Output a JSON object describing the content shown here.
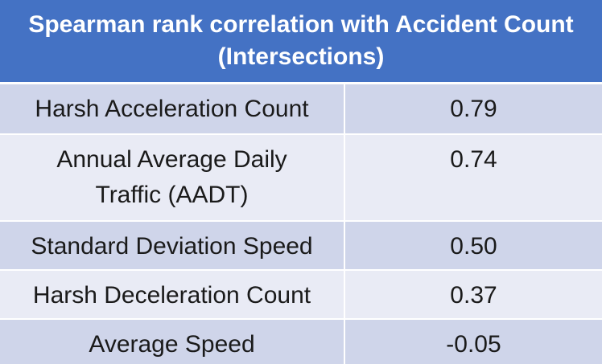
{
  "table": {
    "title": "Spearman rank correlation with Accident Count (Intersections)",
    "rows": [
      {
        "metric": "Harsh Acceleration Count",
        "value": "0.79"
      },
      {
        "metric": "Annual Average Daily Traffic (AADT)",
        "value": "0.74"
      },
      {
        "metric": "Standard Deviation Speed",
        "value": "0.50"
      },
      {
        "metric": "Harsh Deceleration Count",
        "value": "0.37"
      },
      {
        "metric": "Average Speed",
        "value": "-0.05"
      }
    ]
  },
  "colors": {
    "header_bg": "#4472c4",
    "row_dark": "#cfd5ea",
    "row_light": "#e9ebf5"
  }
}
